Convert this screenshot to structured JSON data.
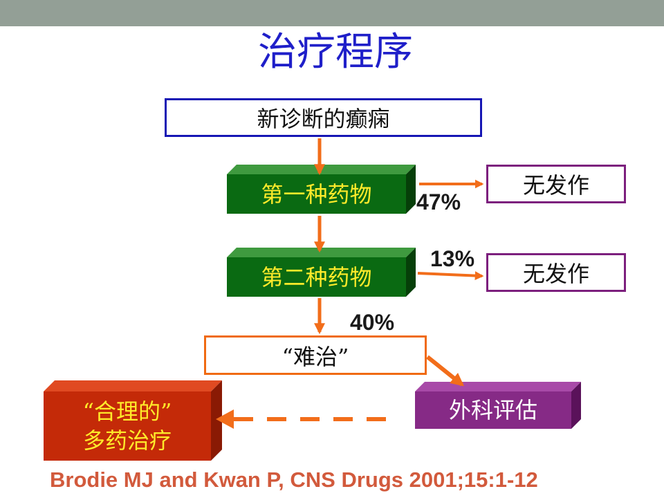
{
  "title": "治疗程序",
  "nodes": {
    "new_diagnosis": "新诊断的癫痫",
    "first_drug": "第一种药物",
    "second_drug": "第二种药物",
    "seizure_free_1": "无发作",
    "seizure_free_2": "无发作",
    "refractory": "“难治”",
    "rational_polytherapy_line1": "“合理的”",
    "rational_polytherapy_line2": "多药治疗",
    "surgical_evaluation": "外科评估"
  },
  "edges": {
    "first_to_free": "47%",
    "second_to_free": "13%",
    "to_refractory": "40%"
  },
  "citation": "Brodie MJ and Kwan P, CNS Drugs 2001;15:1-12",
  "colors": {
    "title": "#1f1fc9",
    "top_band": "#939f96",
    "arrow": "#f26d1a",
    "green_block": "#0a6a12",
    "red_block": "#c42a08",
    "purple_block": "#862a86",
    "yellow_text": "#ffeb2a",
    "citation": "#d25a3c"
  }
}
